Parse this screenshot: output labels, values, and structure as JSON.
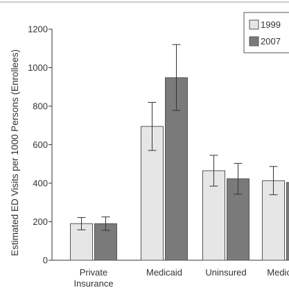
{
  "chart_data": {
    "type": "bar",
    "title": "",
    "xlabel": "",
    "ylabel": "Estimated ED Visits per 1000 Persons (Enrollees)",
    "ylim": [
      0,
      1200
    ],
    "yticks": [
      0,
      200,
      400,
      600,
      800,
      1000,
      1200
    ],
    "categories": [
      [
        "Private",
        "Insurance"
      ],
      [
        "Medicaid"
      ],
      [
        "Uninsured"
      ],
      [
        "Medicare"
      ]
    ],
    "series": [
      {
        "name": "1999",
        "color": "#e6e6e6",
        "values": [
          190,
          695,
          465,
          413
        ],
        "err_low": [
          158,
          570,
          385,
          340
        ],
        "err_high": [
          222,
          820,
          545,
          487
        ]
      },
      {
        "name": "2007",
        "color": "#7a7a7a",
        "values": [
          190,
          948,
          423,
          404
        ],
        "err_low": [
          155,
          778,
          343,
          330
        ],
        "err_high": [
          225,
          1120,
          503,
          478
        ]
      }
    ],
    "legend_position": "top-right",
    "grid": false
  }
}
